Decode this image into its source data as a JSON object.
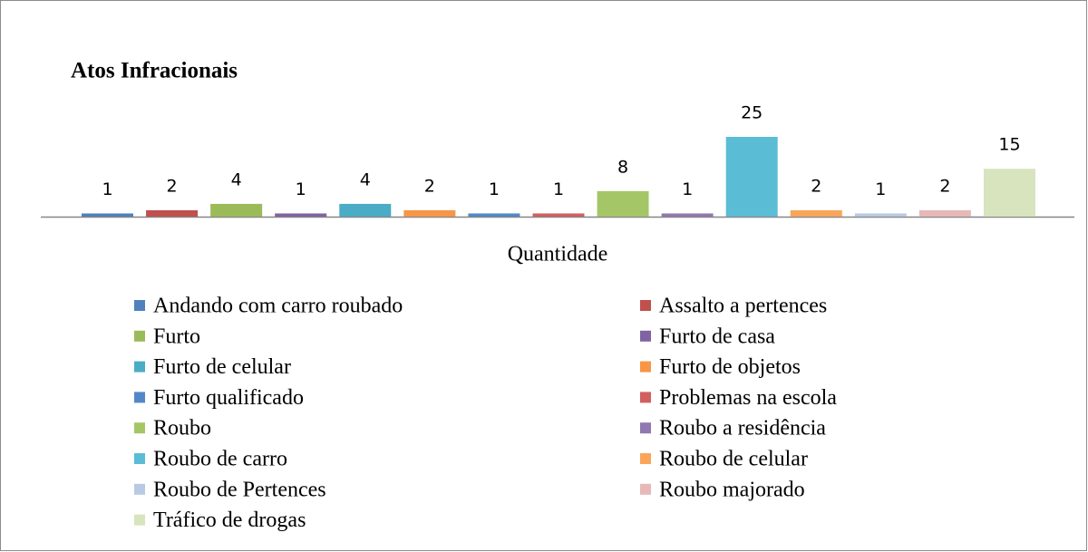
{
  "chart_data": {
    "type": "bar",
    "title": "Atos Infracionais",
    "categories": [
      "Quantidade"
    ],
    "series": [
      {
        "name": "Andando com carro roubado",
        "color": "#4f81bd",
        "values": [
          1
        ]
      },
      {
        "name": "Assalto a pertences",
        "color": "#c0504d",
        "values": [
          2
        ]
      },
      {
        "name": "Furto",
        "color": "#9bbb59",
        "values": [
          4
        ]
      },
      {
        "name": "Furto de casa",
        "color": "#8064a2",
        "values": [
          1
        ]
      },
      {
        "name": "Furto de celular",
        "color": "#4bacc6",
        "values": [
          4
        ]
      },
      {
        "name": "Furto de objetos",
        "color": "#f79646",
        "values": [
          2
        ]
      },
      {
        "name": "Furto qualificado",
        "color": "#5288c8",
        "values": [
          1
        ]
      },
      {
        "name": "Problemas na escola",
        "color": "#d0605d",
        "values": [
          1
        ]
      },
      {
        "name": "Roubo",
        "color": "#a5c666",
        "values": [
          8
        ]
      },
      {
        "name": "Roubo a residência",
        "color": "#9078b0",
        "values": [
          1
        ]
      },
      {
        "name": "Roubo de carro",
        "color": "#5bbcd6",
        "values": [
          25
        ]
      },
      {
        "name": "Roubo de celular",
        "color": "#f9a55a",
        "values": [
          2
        ]
      },
      {
        "name": "Roubo de Pertences",
        "color": "#b9c9e4",
        "values": [
          1
        ]
      },
      {
        "name": "Roubo majorado",
        "color": "#e6b9b8",
        "values": [
          2
        ]
      },
      {
        "name": "Tráfico de drogas",
        "color": "#d7e4bd",
        "values": [
          15
        ]
      }
    ]
  }
}
